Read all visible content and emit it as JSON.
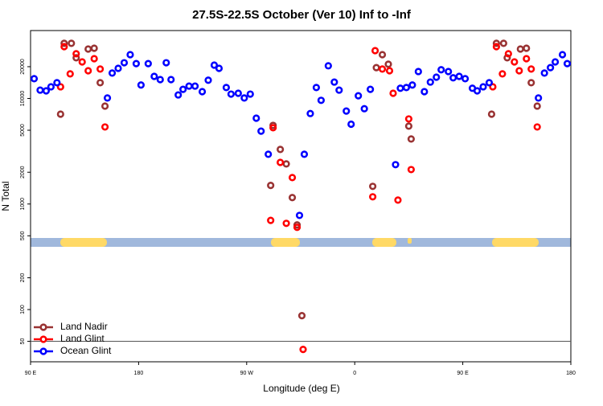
{
  "chart_data": {
    "type": "scatter",
    "title": "27.5S-22.5S October (Ver 10)   Inf to -Inf",
    "xlabel": "Longitude (deg E)",
    "ylabel": "N Total",
    "xlim": [
      90,
      540
    ],
    "ylim": [
      32,
      44000
    ],
    "log_y": true,
    "legend": "lower left",
    "hline": 50,
    "xticks": [
      {
        "value": 90,
        "label": "90 E"
      },
      180,
      {
        "value": 270,
        "label": "90 W"
      },
      {
        "value": 360,
        "label": "0"
      },
      {
        "value": 450,
        "label": "90 E"
      },
      {
        "value": 540,
        "label": "180"
      }
    ],
    "yticks": [
      50,
      100,
      200,
      500,
      1000,
      2000,
      5000,
      10000,
      20000
    ],
    "series": [
      {
        "name": "Land Nadir",
        "color": "#993333",
        "x": [
          115,
          118,
          124,
          128,
          138,
          143,
          148,
          152,
          290,
          292,
          298,
          303,
          308,
          312,
          316,
          375,
          378,
          383,
          388,
          405,
          407,
          474,
          478,
          484,
          487,
          498,
          503,
          507,
          512
        ],
        "values": [
          7100,
          33300,
          33300,
          24300,
          29400,
          29900,
          14100,
          8470,
          1500,
          5560,
          3290,
          2400,
          1150,
          634,
          87.5,
          1470,
          19600,
          26000,
          21100,
          5470,
          4130,
          7100,
          33300,
          33300,
          24300,
          29400,
          29900,
          14100,
          8470
        ]
      },
      {
        "name": "Land Glint",
        "color": "#ff0000",
        "x": [
          115,
          118,
          123,
          128,
          133,
          138,
          143,
          148,
          152,
          290,
          292,
          298,
          303,
          308,
          312,
          317,
          375,
          377,
          383,
          389,
          392,
          396,
          405,
          407,
          475,
          478,
          483,
          488,
          493,
          497,
          503,
          507,
          512
        ],
        "values": [
          12900,
          31000,
          17100,
          26500,
          22200,
          18300,
          23800,
          19000,
          5370,
          700,
          5280,
          2480,
          656,
          1780,
          601,
          41.9,
          1170,
          28400,
          19000,
          18300,
          11200,
          1090,
          6400,
          2120,
          12900,
          31000,
          17100,
          26500,
          22200,
          18300,
          23800,
          19000,
          5370
        ]
      },
      {
        "name": "Ocean Glint",
        "color": "#0000ff",
        "x": [
          93,
          98,
          103,
          107,
          112,
          154,
          158,
          163,
          168,
          173,
          178,
          182,
          188,
          193,
          198,
          203,
          207,
          213,
          217,
          222,
          227,
          233,
          238,
          243,
          247,
          253,
          257,
          263,
          268,
          273,
          278,
          282,
          288,
          314,
          318,
          323,
          328,
          332,
          338,
          343,
          347,
          353,
          357,
          363,
          368,
          373,
          394,
          398,
          403,
          408,
          413,
          418,
          423,
          428,
          432,
          438,
          442,
          447,
          452,
          458,
          462,
          467,
          472,
          513,
          518,
          523,
          527,
          533,
          537
        ],
        "values": [
          15400,
          12000,
          11800,
          12900,
          14100,
          10100,
          17400,
          19300,
          21800,
          26000,
          21400,
          13400,
          21400,
          16200,
          15100,
          21800,
          15100,
          10800,
          12200,
          13100,
          13100,
          11600,
          14900,
          20700,
          19300,
          12700,
          11000,
          11200,
          10100,
          11000,
          6500,
          4900,
          2960,
          780,
          2960,
          7200,
          12700,
          9600,
          20400,
          14300,
          12000,
          7600,
          5700,
          10600,
          8000,
          12200,
          2360,
          12500,
          12700,
          13400,
          18000,
          11600,
          14300,
          15900,
          18700,
          18000,
          15700,
          16200,
          15400,
          12500,
          11800,
          12900,
          14100,
          10100,
          17400,
          19600,
          22200,
          26000,
          21400
        ]
      }
    ]
  }
}
